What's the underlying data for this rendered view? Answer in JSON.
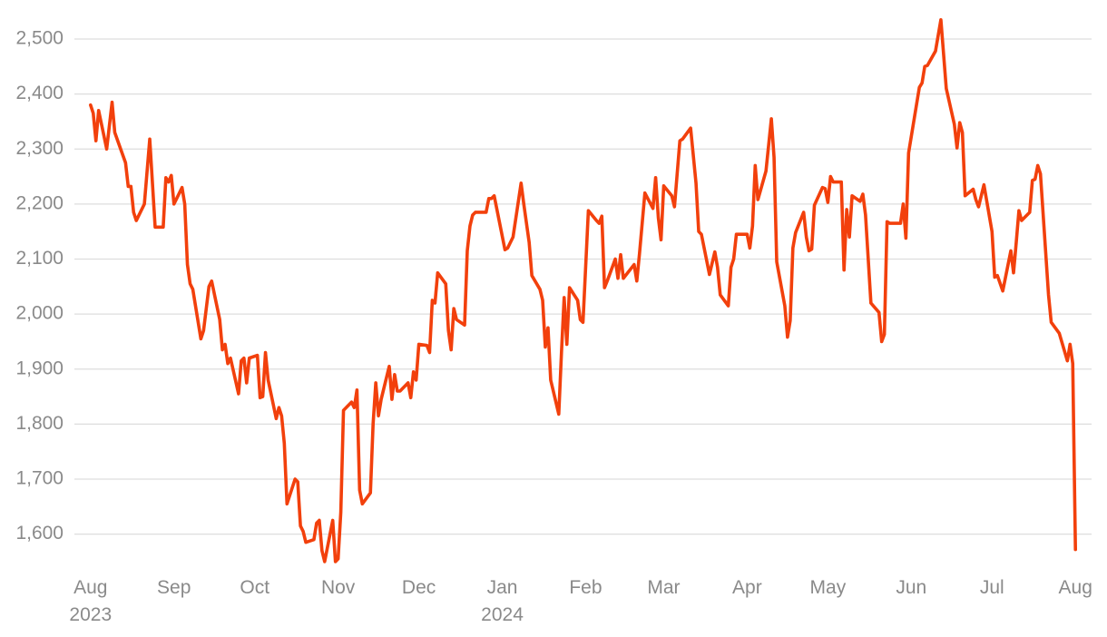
{
  "chart_data": {
    "type": "line",
    "color": "#f2400c",
    "grid": true,
    "ylim": [
      1540,
      2560
    ],
    "yticks": [
      {
        "value": 1600,
        "label": "1,600"
      },
      {
        "value": 1700,
        "label": "1,700"
      },
      {
        "value": 1800,
        "label": "1,800"
      },
      {
        "value": 1900,
        "label": "1,900"
      },
      {
        "value": 2000,
        "label": "2,000"
      },
      {
        "value": 2100,
        "label": "2,100"
      },
      {
        "value": 2200,
        "label": "2,200"
      },
      {
        "value": 2300,
        "label": "2,300"
      },
      {
        "value": 2400,
        "label": "2,400"
      },
      {
        "value": 2500,
        "label": "2,500"
      }
    ],
    "xlim": [
      "2023-07-26",
      "2024-08-07"
    ],
    "xticks": [
      {
        "value": "2023-08-01",
        "label": "Aug 2023"
      },
      {
        "value": "2023-09-01",
        "label": "Sep"
      },
      {
        "value": "2023-10-01",
        "label": "Oct"
      },
      {
        "value": "2023-11-01",
        "label": "Nov"
      },
      {
        "value": "2023-12-01",
        "label": "Dec"
      },
      {
        "value": "2024-01-01",
        "label": "Jan 2024"
      },
      {
        "value": "2024-02-01",
        "label": "Feb"
      },
      {
        "value": "2024-03-01",
        "label": "Mar"
      },
      {
        "value": "2024-04-01",
        "label": "Apr"
      },
      {
        "value": "2024-05-01",
        "label": "May"
      },
      {
        "value": "2024-06-01",
        "label": "Jun"
      },
      {
        "value": "2024-07-01",
        "label": "Jul"
      },
      {
        "value": "2024-08-01",
        "label": "Aug"
      }
    ],
    "x": [
      "2023-08-01",
      "2023-08-02",
      "2023-08-03",
      "2023-08-04",
      "2023-08-07",
      "2023-08-09",
      "2023-08-10",
      "2023-08-14",
      "2023-08-15",
      "2023-08-16",
      "2023-08-17",
      "2023-08-18",
      "2023-08-21",
      "2023-08-23",
      "2023-08-25",
      "2023-08-28",
      "2023-08-29",
      "2023-08-30",
      "2023-08-31",
      "2023-09-01",
      "2023-09-04",
      "2023-09-05",
      "2023-09-06",
      "2023-09-07",
      "2023-09-08",
      "2023-09-11",
      "2023-09-12",
      "2023-09-14",
      "2023-09-15",
      "2023-09-18",
      "2023-09-19",
      "2023-09-20",
      "2023-09-21",
      "2023-09-22",
      "2023-09-25",
      "2023-09-26",
      "2023-09-27",
      "2023-09-28",
      "2023-09-29",
      "2023-10-02",
      "2023-10-03",
      "2023-10-04",
      "2023-10-05",
      "2023-10-06",
      "2023-10-09",
      "2023-10-10",
      "2023-10-11",
      "2023-10-12",
      "2023-10-13",
      "2023-10-16",
      "2023-10-17",
      "2023-10-18",
      "2023-10-19",
      "2023-10-20",
      "2023-10-23",
      "2023-10-24",
      "2023-10-25",
      "2023-10-26",
      "2023-10-27",
      "2023-10-30",
      "2023-10-31",
      "2023-11-01",
      "2023-11-02",
      "2023-11-03",
      "2023-11-06",
      "2023-11-07",
      "2023-11-08",
      "2023-11-09",
      "2023-11-10",
      "2023-11-13",
      "2023-11-14",
      "2023-11-15",
      "2023-11-16",
      "2023-11-17",
      "2023-11-20",
      "2023-11-21",
      "2023-11-22",
      "2023-11-23",
      "2023-11-24",
      "2023-11-27",
      "2023-11-28",
      "2023-11-29",
      "2023-11-30",
      "2023-12-01",
      "2023-12-04",
      "2023-12-05",
      "2023-12-06",
      "2023-12-07",
      "2023-12-08",
      "2023-12-11",
      "2023-12-12",
      "2023-12-13",
      "2023-12-14",
      "2023-12-15",
      "2023-12-18",
      "2023-12-19",
      "2023-12-20",
      "2023-12-21",
      "2023-12-22",
      "2023-12-26",
      "2023-12-27",
      "2023-12-28",
      "2023-12-29",
      "2024-01-02",
      "2024-01-03",
      "2024-01-05",
      "2024-01-08",
      "2024-01-09",
      "2024-01-11",
      "2024-01-12",
      "2024-01-15",
      "2024-01-16",
      "2024-01-17",
      "2024-01-18",
      "2024-01-19",
      "2024-01-22",
      "2024-01-23",
      "2024-01-24",
      "2024-01-25",
      "2024-01-26",
      "2024-01-29",
      "2024-01-30",
      "2024-01-31",
      "2024-02-02",
      "2024-02-05",
      "2024-02-06",
      "2024-02-07",
      "2024-02-08",
      "2024-02-09",
      "2024-02-12",
      "2024-02-13",
      "2024-02-14",
      "2024-02-15",
      "2024-02-19",
      "2024-02-20",
      "2024-02-21",
      "2024-02-23",
      "2024-02-26",
      "2024-02-27",
      "2024-02-28",
      "2024-02-29",
      "2024-03-01",
      "2024-03-04",
      "2024-03-05",
      "2024-03-07",
      "2024-03-08",
      "2024-03-11",
      "2024-03-13",
      "2024-03-14",
      "2024-03-15",
      "2024-03-18",
      "2024-03-20",
      "2024-03-21",
      "2024-03-22",
      "2024-03-25",
      "2024-03-26",
      "2024-03-27",
      "2024-03-28",
      "2024-03-29",
      "2024-04-01",
      "2024-04-02",
      "2024-04-03",
      "2024-04-04",
      "2024-04-05",
      "2024-04-08",
      "2024-04-10",
      "2024-04-11",
      "2024-04-12",
      "2024-04-15",
      "2024-04-16",
      "2024-04-17",
      "2024-04-18",
      "2024-04-19",
      "2024-04-22",
      "2024-04-23",
      "2024-04-24",
      "2024-04-25",
      "2024-04-26",
      "2024-04-29",
      "2024-04-30",
      "2024-05-01",
      "2024-05-02",
      "2024-05-03",
      "2024-05-06",
      "2024-05-07",
      "2024-05-08",
      "2024-05-09",
      "2024-05-10",
      "2024-05-13",
      "2024-05-14",
      "2024-05-15",
      "2024-05-17",
      "2024-05-20",
      "2024-05-21",
      "2024-05-22",
      "2024-05-23",
      "2024-05-24",
      "2024-05-28",
      "2024-05-29",
      "2024-05-30",
      "2024-05-31",
      "2024-06-04",
      "2024-06-05",
      "2024-06-06",
      "2024-06-07",
      "2024-06-10",
      "2024-06-12",
      "2024-06-14",
      "2024-06-17",
      "2024-06-18",
      "2024-06-19",
      "2024-06-20",
      "2024-06-21",
      "2024-06-24",
      "2024-06-25",
      "2024-06-26",
      "2024-06-28",
      "2024-07-01",
      "2024-07-02",
      "2024-07-03",
      "2024-07-05",
      "2024-07-08",
      "2024-07-09",
      "2024-07-10",
      "2024-07-11",
      "2024-07-12",
      "2024-07-15",
      "2024-07-16",
      "2024-07-17",
      "2024-07-18",
      "2024-07-19",
      "2024-07-22",
      "2024-07-23",
      "2024-07-26",
      "2024-07-29",
      "2024-07-30",
      "2024-07-31",
      "2024-08-01"
    ],
    "values": [
      2380,
      2365,
      2315,
      2370,
      2300,
      2385,
      2330,
      2275,
      2232,
      2232,
      2185,
      2170,
      2200,
      2318,
      2158,
      2158,
      2248,
      2240,
      2252,
      2200,
      2230,
      2200,
      2090,
      2055,
      2045,
      1955,
      1970,
      2050,
      2060,
      1990,
      1935,
      1945,
      1910,
      1920,
      1855,
      1915,
      1920,
      1875,
      1920,
      1925,
      1848,
      1850,
      1930,
      1880,
      1810,
      1830,
      1815,
      1765,
      1655,
      1700,
      1695,
      1615,
      1605,
      1585,
      1590,
      1620,
      1625,
      1570,
      1550,
      1625,
      1550,
      1555,
      1640,
      1825,
      1840,
      1830,
      1862,
      1680,
      1655,
      1675,
      1800,
      1875,
      1815,
      1845,
      1905,
      1845,
      1890,
      1860,
      1860,
      1875,
      1848,
      1895,
      1880,
      1945,
      1943,
      1930,
      2025,
      2020,
      2075,
      2055,
      1970,
      1935,
      2010,
      1990,
      1980,
      2115,
      2160,
      2180,
      2185,
      2185,
      2210,
      2210,
      2215,
      2117,
      2120,
      2140,
      2238,
      2200,
      2130,
      2070,
      2045,
      2025,
      1940,
      1975,
      1880,
      1818,
      1930,
      2030,
      1945,
      2048,
      2025,
      1990,
      1985,
      2188,
      2170,
      2165,
      2178,
      2048,
      2060,
      2100,
      2065,
      2108,
      2065,
      2090,
      2060,
      2110,
      2220,
      2192,
      2248,
      2175,
      2135,
      2233,
      2215,
      2195,
      2315,
      2318,
      2338,
      2238,
      2150,
      2145,
      2072,
      2113,
      2085,
      2035,
      2015,
      2085,
      2100,
      2145,
      2145,
      2145,
      2120,
      2160,
      2270,
      2208,
      2260,
      2355,
      2285,
      2095,
      2015,
      1958,
      1988,
      2120,
      2148,
      2185,
      2140,
      2115,
      2118,
      2198,
      2230,
      2228,
      2203,
      2250,
      2240,
      2240,
      2080,
      2190,
      2140,
      2215,
      2205,
      2218,
      2180,
      2020,
      2003,
      1950,
      1963,
      2168,
      2165,
      2165,
      2200,
      2138,
      2293,
      2412,
      2420,
      2450,
      2452,
      2478,
      2535,
      2410,
      2345,
      2302,
      2348,
      2330,
      2215,
      2227,
      2208,
      2195,
      2235,
      2150,
      2067,
      2070,
      2042,
      2115,
      2075,
      2130,
      2188,
      2170,
      2185,
      2243,
      2245,
      2270,
      2255,
      2035,
      1985,
      1965,
      1915,
      1945,
      1910,
      1572
    ]
  }
}
